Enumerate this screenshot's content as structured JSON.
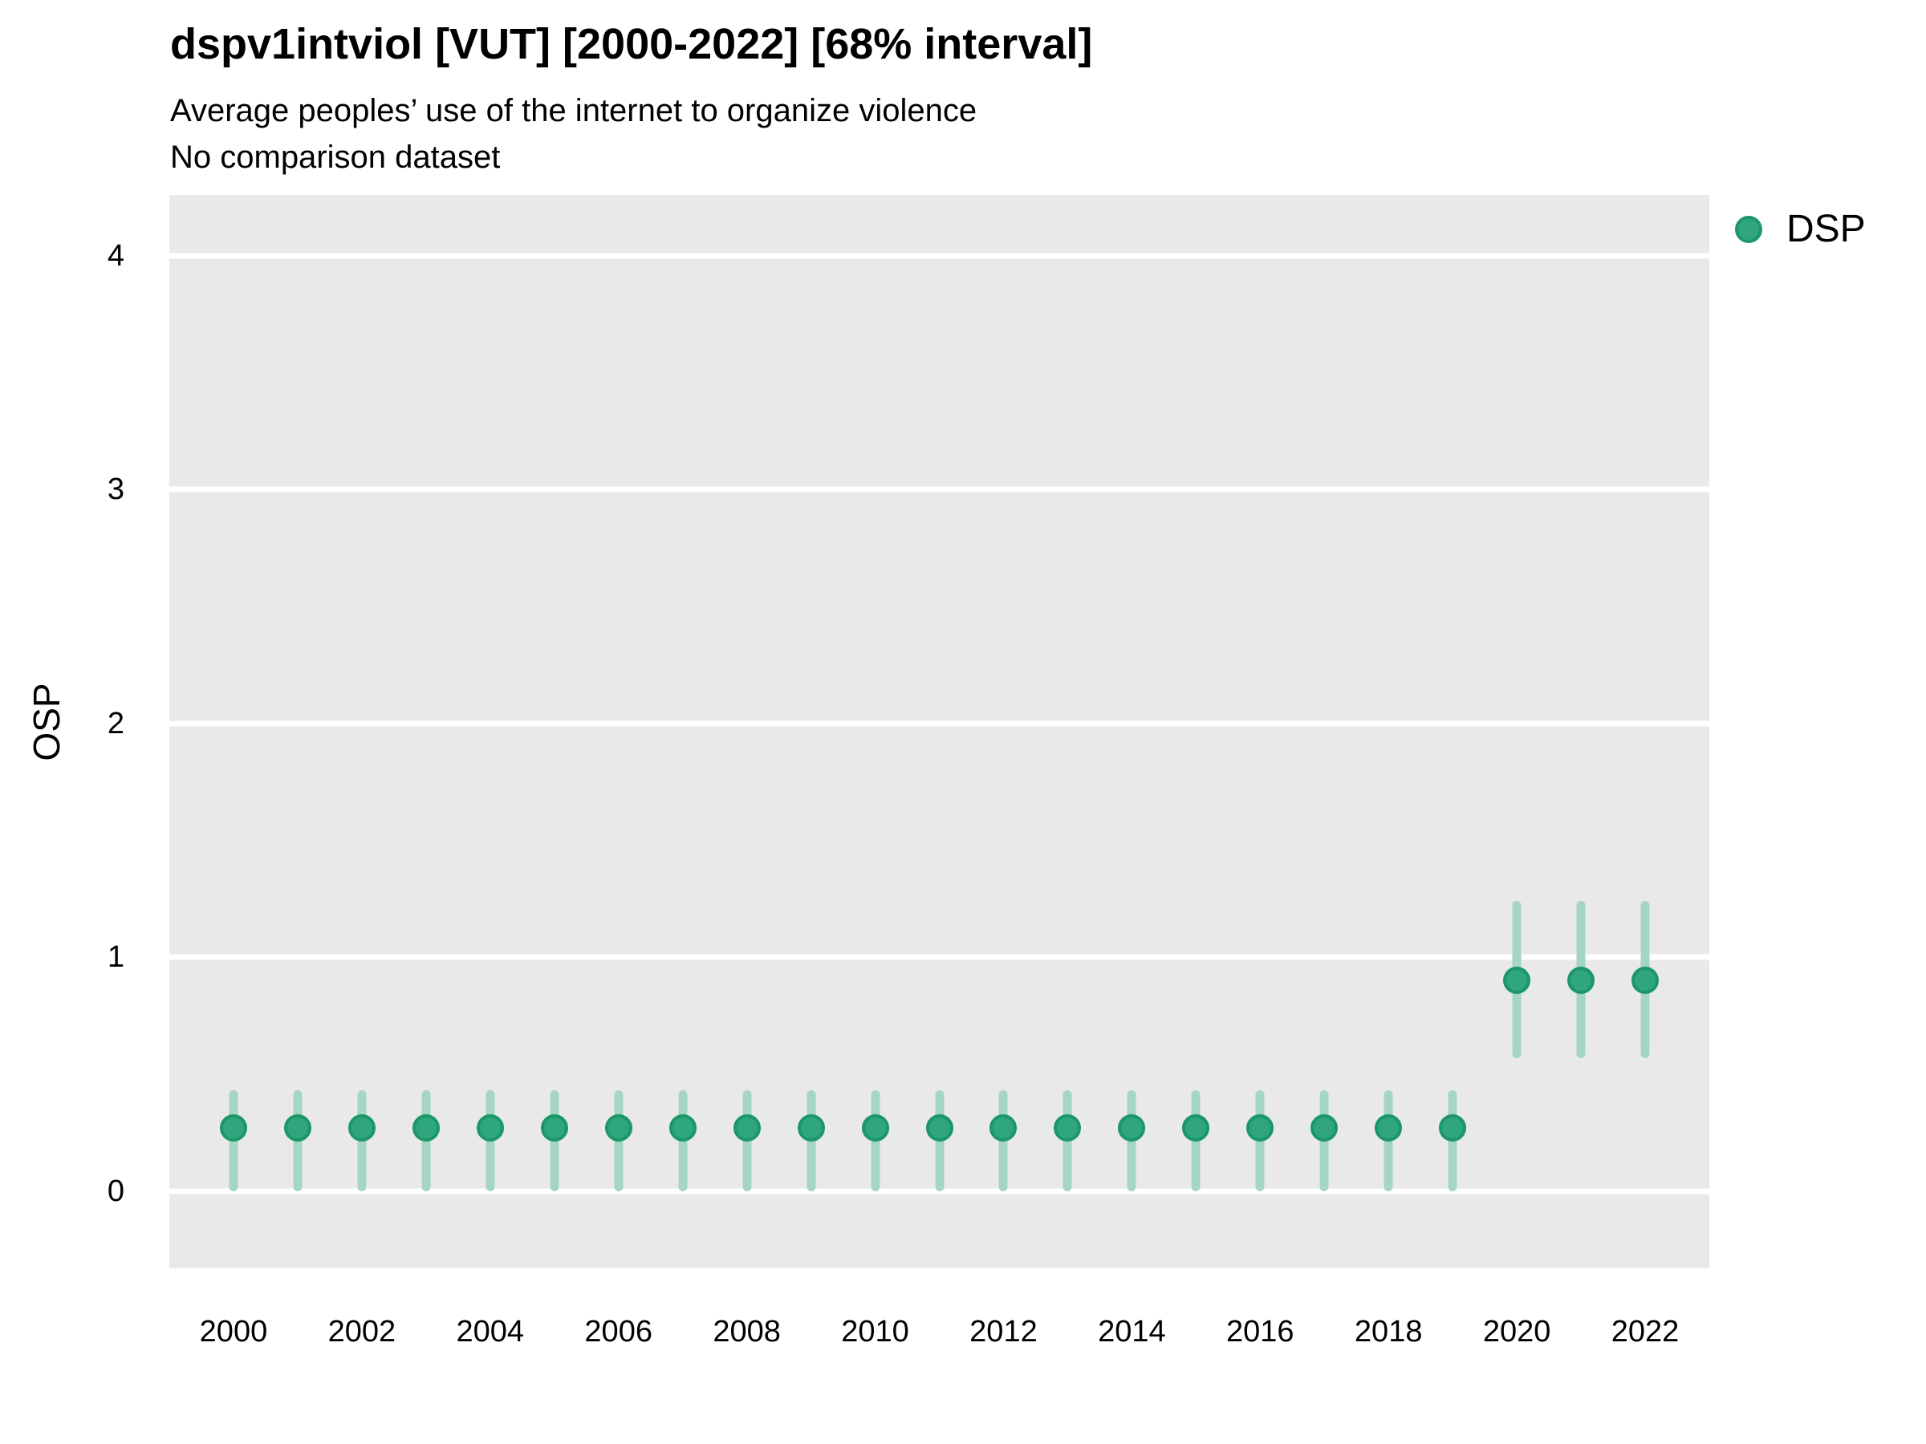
{
  "header": {
    "title": "dspv1intviol [VUT] [2000-2022] [68% interval]",
    "subtitle": "Average peoples’ use of the internet to organize violence",
    "caption": "No comparison dataset"
  },
  "axes": {
    "y_label": "OSP",
    "y_ticks": [
      0,
      1,
      2,
      3,
      4
    ],
    "x_ticks": [
      2000,
      2002,
      2004,
      2006,
      2008,
      2010,
      2012,
      2014,
      2016,
      2018,
      2020,
      2022
    ]
  },
  "legend": {
    "position": "right",
    "items": [
      {
        "label": "DSP",
        "color": "#2FA67E"
      }
    ]
  },
  "colors": {
    "point_fill": "#2FA67E",
    "point_stroke": "#1B9768",
    "interval_bar": "#A5D6C3",
    "panel_background": "#E9E9E9",
    "gridline": "#FFFFFF",
    "text": "#000000"
  },
  "chart_data": {
    "type": "pointrange",
    "title": "dspv1intviol [VUT] [2000-2022] [68% interval]",
    "subtitle": "Average peoples’ use of the internet to organize violence",
    "caption": "No comparison dataset",
    "interval_level": "68%",
    "country": "VUT",
    "xlabel": "",
    "ylabel": "OSP",
    "xlim": [
      1999,
      2023
    ],
    "ylim": [
      -0.33,
      4.26
    ],
    "grid": "horizontal-major-only",
    "legend_position": "right",
    "series": [
      {
        "name": "DSP",
        "x": [
          2000,
          2001,
          2002,
          2003,
          2004,
          2005,
          2006,
          2007,
          2008,
          2009,
          2010,
          2011,
          2012,
          2013,
          2014,
          2015,
          2016,
          2017,
          2018,
          2019,
          2020,
          2021,
          2022
        ],
        "est": [
          0.27,
          0.27,
          0.27,
          0.27,
          0.27,
          0.27,
          0.27,
          0.27,
          0.27,
          0.27,
          0.27,
          0.27,
          0.27,
          0.27,
          0.27,
          0.27,
          0.27,
          0.27,
          0.27,
          0.27,
          0.9,
          0.9,
          0.9
        ],
        "lo": [
          0.0,
          0.0,
          0.0,
          0.0,
          0.0,
          0.0,
          0.0,
          0.0,
          0.0,
          0.0,
          0.0,
          0.0,
          0.0,
          0.0,
          0.0,
          0.0,
          0.0,
          0.0,
          0.0,
          0.0,
          0.57,
          0.57,
          0.57
        ],
        "hi": [
          0.43,
          0.43,
          0.43,
          0.43,
          0.43,
          0.43,
          0.43,
          0.43,
          0.43,
          0.43,
          0.43,
          0.43,
          0.43,
          0.43,
          0.43,
          0.43,
          0.43,
          0.43,
          0.43,
          0.43,
          1.24,
          1.24,
          1.24
        ]
      }
    ]
  }
}
